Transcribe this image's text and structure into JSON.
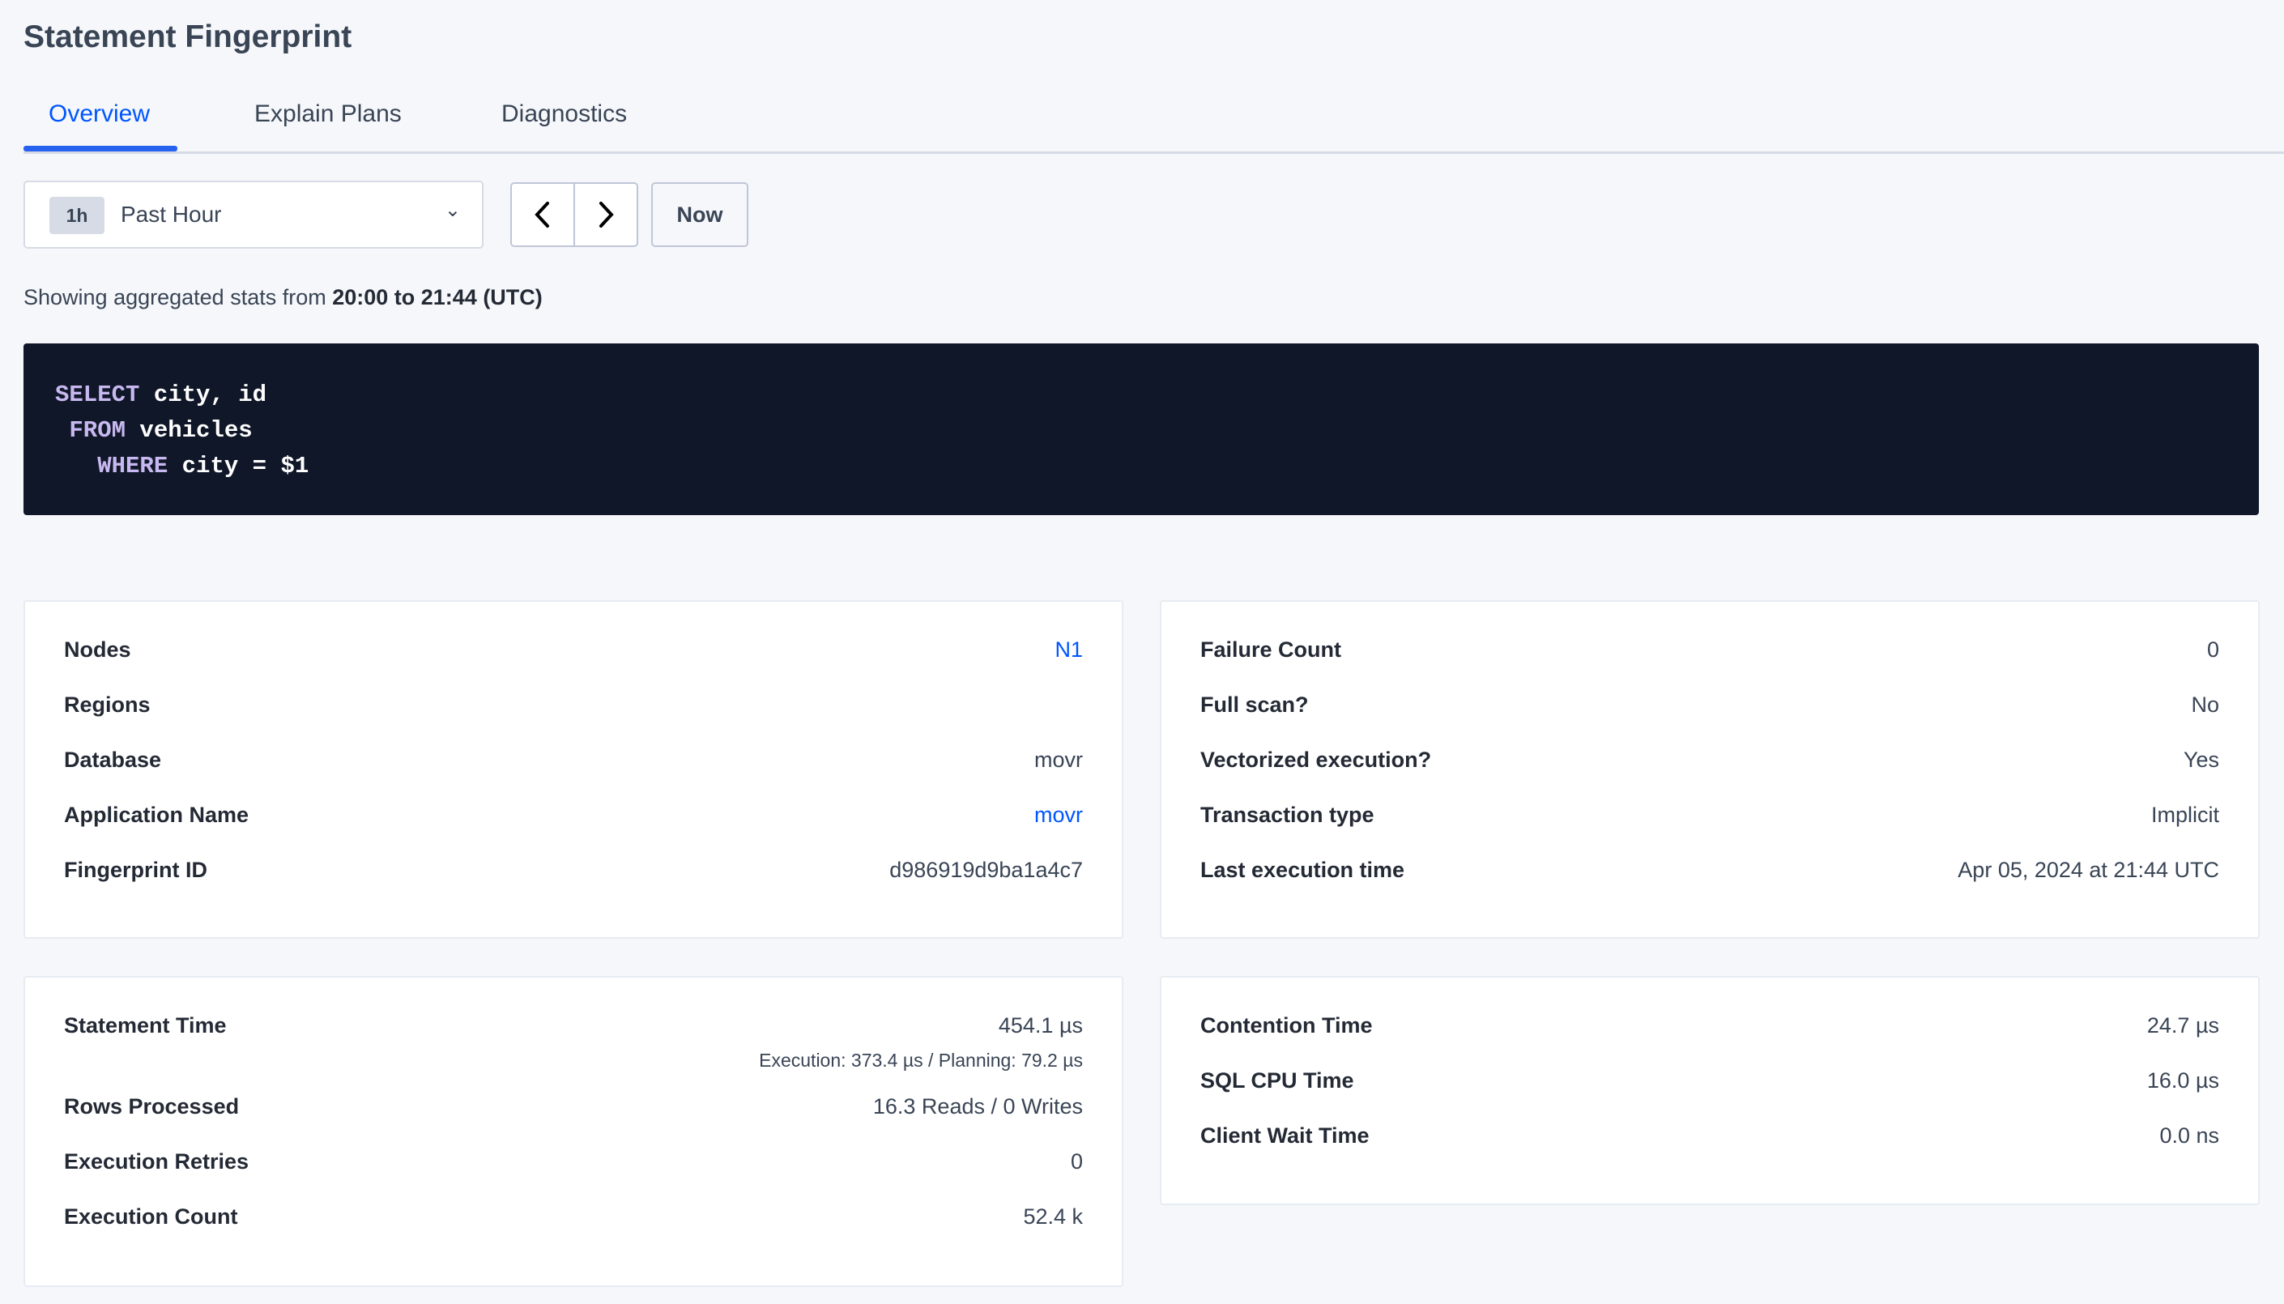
{
  "title": "Statement Fingerprint",
  "tabs": [
    {
      "label": "Overview",
      "active": true
    },
    {
      "label": "Explain Plans"
    },
    {
      "label": "Diagnostics"
    }
  ],
  "time_select": {
    "badge": "1h",
    "label": "Past Hour"
  },
  "now_label": "Now",
  "stats": {
    "prefix": "Showing aggregated stats from ",
    "range": "20:00 to 21:44 (UTC)"
  },
  "sql": {
    "l1kw": "SELECT",
    "l1": " city, id",
    "l2kw": "FROM",
    "l2": " vehicles",
    "l3kw": "WHERE",
    "l3": " city = $1"
  },
  "card1": [
    {
      "label": "Nodes",
      "value": "N1",
      "link": true
    },
    {
      "label": "Regions",
      "value": ""
    },
    {
      "label": "Database",
      "value": "movr"
    },
    {
      "label": "Application Name",
      "value": "movr",
      "link": true
    },
    {
      "label": "Fingerprint ID",
      "value": "d986919d9ba1a4c7"
    }
  ],
  "card2": [
    {
      "label": "Failure Count",
      "value": "0"
    },
    {
      "label": "Full scan?",
      "value": "No"
    },
    {
      "label": "Vectorized execution?",
      "value": "Yes"
    },
    {
      "label": "Transaction type",
      "value": "Implicit"
    },
    {
      "label": "Last execution time",
      "value": "Apr 05, 2024 at 21:44 UTC"
    }
  ],
  "card3": {
    "statement_time": {
      "label": "Statement Time",
      "value": "454.1 µs",
      "sub": "Execution: 373.4 µs / Planning: 79.2 µs"
    },
    "rows": [
      {
        "label": "Rows Processed",
        "value": "16.3 Reads / 0 Writes"
      },
      {
        "label": "Execution Retries",
        "value": "0"
      },
      {
        "label": "Execution Count",
        "value": "52.4 k"
      }
    ]
  },
  "card4": [
    {
      "label": "Contention Time",
      "value": "24.7 µs"
    },
    {
      "label": "SQL CPU Time",
      "value": "16.0 µs"
    },
    {
      "label": "Client Wait Time",
      "value": "0.0 ns"
    }
  ],
  "colors": {
    "accent": "#0055ff",
    "code_bg": "#101729"
  }
}
